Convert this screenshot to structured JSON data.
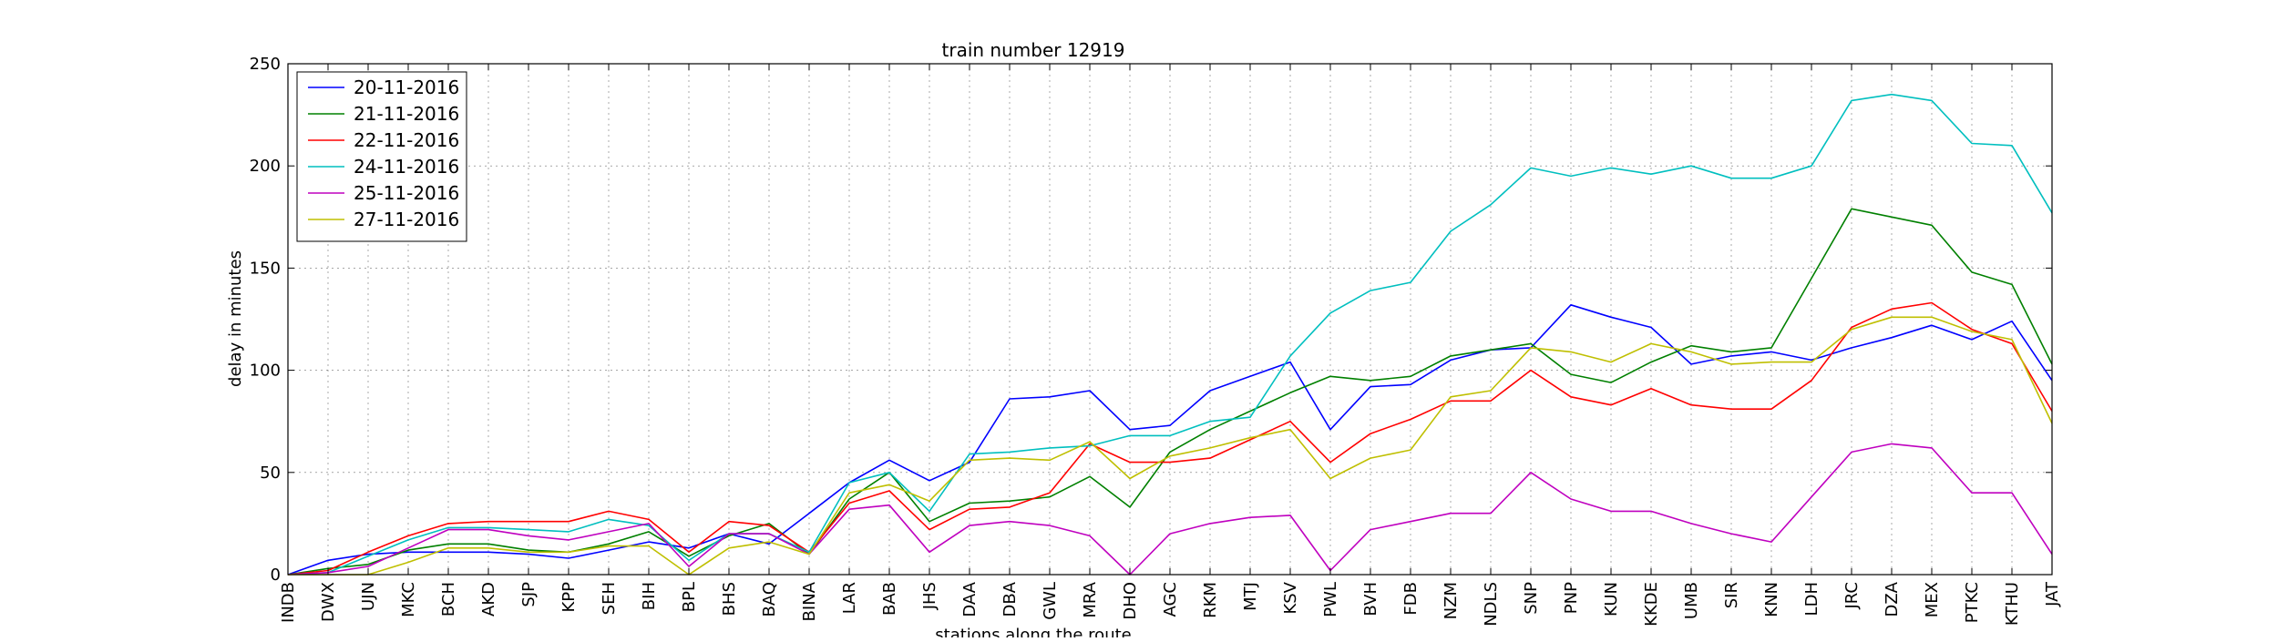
{
  "chart_data": {
    "type": "line",
    "title": "train number 12919",
    "xlabel": "stations along the route",
    "ylabel": "delay in minutes",
    "ylim": [
      0,
      250
    ],
    "yticks": [
      0,
      50,
      100,
      150,
      200,
      250
    ],
    "grid": true,
    "legend_position": "top-left",
    "categories": [
      "INDB",
      "DWX",
      "UJN",
      "MKC",
      "BCH",
      "AKD",
      "SJP",
      "KPP",
      "SEH",
      "BIH",
      "BPL",
      "BHS",
      "BAQ",
      "BINA",
      "LAR",
      "BAB",
      "JHS",
      "DAA",
      "DBA",
      "GWL",
      "MRA",
      "DHO",
      "AGC",
      "RKM",
      "MTJ",
      "KSV",
      "PWL",
      "BVH",
      "FDB",
      "NZM",
      "NDLS",
      "SNP",
      "PNP",
      "KUN",
      "KKDE",
      "UMB",
      "SIR",
      "KNN",
      "LDH",
      "JRC",
      "DZA",
      "MEX",
      "PTKC",
      "KTHU",
      "JAT"
    ],
    "series": [
      {
        "name": "20-11-2016",
        "color": "#0000ff",
        "values": [
          0,
          7,
          10,
          11,
          11,
          11,
          10,
          8,
          12,
          16,
          13,
          20,
          15,
          30,
          45,
          56,
          46,
          55,
          86,
          87,
          90,
          71,
          73,
          90,
          97,
          104,
          71,
          92,
          93,
          105,
          110,
          111,
          132,
          126,
          121,
          103,
          107,
          109,
          105,
          111,
          116,
          122,
          115,
          124,
          95
        ]
      },
      {
        "name": "21-11-2016",
        "color": "#008000",
        "values": [
          0,
          3,
          5,
          12,
          15,
          15,
          12,
          11,
          15,
          21,
          9,
          19,
          25,
          10,
          37,
          50,
          26,
          35,
          36,
          38,
          48,
          33,
          60,
          71,
          80,
          89,
          97,
          95,
          97,
          107,
          110,
          113,
          98,
          94,
          104,
          112,
          109,
          111,
          145,
          179,
          175,
          171,
          148,
          142,
          103
        ]
      },
      {
        "name": "22-11-2016",
        "color": "#ff0000",
        "values": [
          0,
          2,
          11,
          19,
          25,
          26,
          26,
          26,
          31,
          27,
          11,
          26,
          24,
          11,
          35,
          41,
          22,
          32,
          33,
          40,
          64,
          55,
          55,
          57,
          66,
          75,
          55,
          69,
          76,
          85,
          85,
          100,
          87,
          83,
          91,
          83,
          81,
          81,
          95,
          121,
          130,
          133,
          120,
          113,
          80
        ]
      },
      {
        "name": "24-11-2016",
        "color": "#00bfbf",
        "values": [
          0,
          1,
          9,
          17,
          23,
          23,
          22,
          21,
          27,
          24,
          7,
          20,
          20,
          11,
          45,
          50,
          31,
          59,
          60,
          62,
          63,
          68,
          68,
          75,
          77,
          107,
          128,
          139,
          143,
          168,
          181,
          199,
          195,
          199,
          196,
          200,
          194,
          194,
          200,
          232,
          235,
          232,
          211,
          210,
          177
        ]
      },
      {
        "name": "25-11-2016",
        "color": "#bf00bf",
        "values": [
          0,
          1,
          4,
          13,
          22,
          22,
          19,
          17,
          21,
          25,
          4,
          20,
          20,
          10,
          32,
          34,
          11,
          24,
          26,
          24,
          19,
          0,
          20,
          25,
          28,
          29,
          2,
          22,
          26,
          30,
          30,
          50,
          37,
          31,
          31,
          25,
          20,
          16,
          38,
          60,
          64,
          62,
          40,
          40,
          10
        ]
      },
      {
        "name": "27-11-2016",
        "color": "#bfbf00",
        "values": [
          0,
          0,
          0,
          6,
          13,
          13,
          11,
          11,
          14,
          14,
          0,
          13,
          16,
          10,
          40,
          44,
          36,
          56,
          57,
          56,
          65,
          47,
          58,
          62,
          67,
          71,
          47,
          57,
          61,
          87,
          90,
          111,
          109,
          104,
          113,
          109,
          103,
          104,
          104,
          120,
          126,
          126,
          119,
          115,
          74
        ]
      }
    ]
  }
}
